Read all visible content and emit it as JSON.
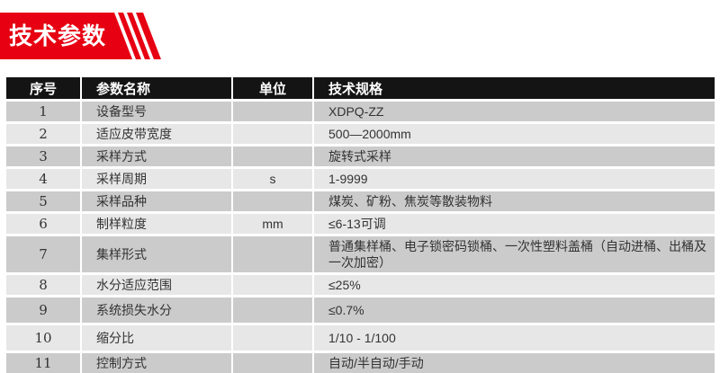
{
  "banner": {
    "title": "技术参数"
  },
  "colors": {
    "accent_red": "#e60012",
    "header_bg": "#141414",
    "row_dark": "#cbcbcb",
    "row_light": "#e7e7e7",
    "header_text": "#ffffff",
    "body_text": "#333333"
  },
  "table": {
    "headers": [
      "序号",
      "参数名称",
      "单位",
      "技术规格"
    ],
    "rows": [
      {
        "no": "1",
        "name": "设备型号",
        "unit": "",
        "spec": "XDPQ-ZZ"
      },
      {
        "no": "2",
        "name": "适应皮带宽度",
        "unit": "",
        "spec": "500—2000mm"
      },
      {
        "no": "3",
        "name": "采样方式",
        "unit": "",
        "spec": "旋转式采样"
      },
      {
        "no": "4",
        "name": "采样周期",
        "unit": "s",
        "spec": "1-9999"
      },
      {
        "no": "5",
        "name": "采样品种",
        "unit": "",
        "spec": "煤炭、矿粉、焦炭等散装物料"
      },
      {
        "no": "6",
        "name": "制样粒度",
        "unit": "mm",
        "spec": "≤6-13可调"
      },
      {
        "no": "7",
        "name": "集样形式",
        "unit": "",
        "spec": "普通集样桶、电子锁密码锁桶、一次性塑料盖桶（自动进桶、出桶及一次加密）"
      },
      {
        "no": "8",
        "name": "水分适应范围",
        "unit": "",
        "spec": "≤25%"
      },
      {
        "no": "9",
        "name": "系统损失水分",
        "unit": "",
        "spec": "≤0.7%"
      },
      {
        "no": "10",
        "name": "缩分比",
        "unit": "",
        "spec": "1/10 - 1/100"
      },
      {
        "no": "11",
        "name": "控制方式",
        "unit": "",
        "spec": "自动/半自动/手动"
      }
    ]
  }
}
